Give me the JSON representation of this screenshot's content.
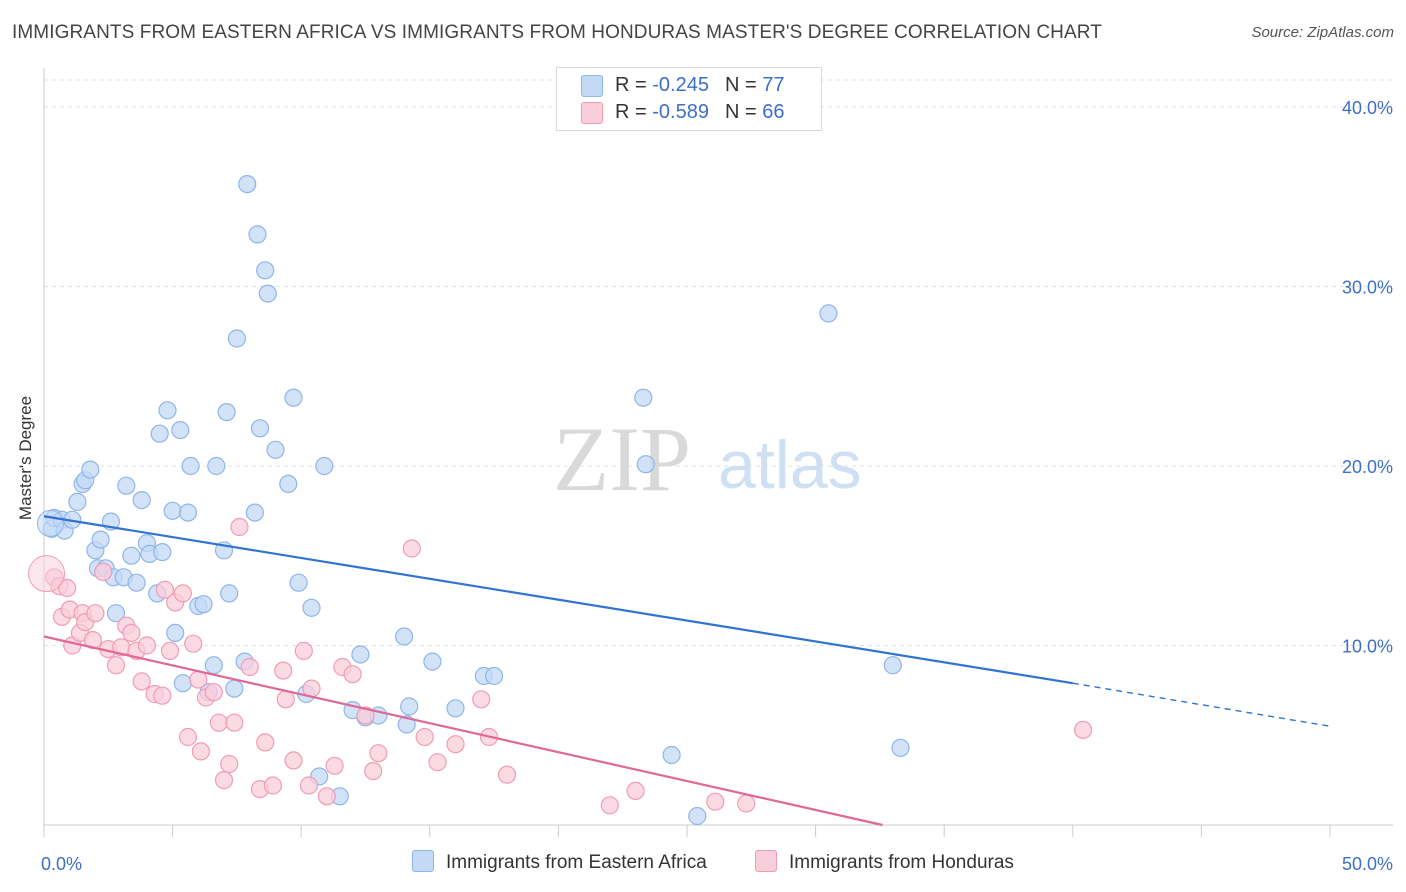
{
  "title": "IMMIGRANTS FROM EASTERN AFRICA VS IMMIGRANTS FROM HONDURAS MASTER'S DEGREE CORRELATION CHART",
  "source": "Source: ZipAtlas.com",
  "watermark": {
    "zip": "ZIP",
    "atlas": "atlas"
  },
  "legend": {
    "rows": [
      {
        "r_label": "R = ",
        "r_value": "-0.245",
        "n_label": "N = ",
        "n_value": "77",
        "color": "#b9d3f4"
      },
      {
        "r_label": "R = ",
        "r_value": "-0.589",
        "n_label": "N = ",
        "n_value": "66",
        "color": "#f9c6d4"
      }
    ]
  },
  "chart_data": {
    "type": "scatter",
    "ylabel": "Master's Degree",
    "xlabel": "",
    "xlim": [
      0,
      50
    ],
    "ylim": [
      0,
      41.5
    ],
    "x_tick_labels": [
      "0.0%",
      "50.0%"
    ],
    "y_ticks": [
      10,
      20,
      30,
      40
    ],
    "y_tick_labels": [
      "10.0%",
      "20.0%",
      "30.0%",
      "40.0%"
    ],
    "grid": true,
    "series": [
      {
        "name": "Immigrants from Eastern Africa",
        "color": "#8fb5ea",
        "fill": "#c3d9f5",
        "line_color": "#3073d1",
        "trend": {
          "x0": 0,
          "y0": 17.2,
          "x1": 40,
          "y1": 7.9,
          "dash_to_x": 50,
          "dash_to_y": 5.5
        },
        "points": [
          [
            0.3,
            16.5
          ],
          [
            0.4,
            17.1
          ],
          [
            0.7,
            17.0
          ],
          [
            0.8,
            16.4
          ],
          [
            1.1,
            17.0
          ],
          [
            1.3,
            18.0
          ],
          [
            1.5,
            19.0
          ],
          [
            1.6,
            19.2
          ],
          [
            1.8,
            19.8
          ],
          [
            2.0,
            15.3
          ],
          [
            2.1,
            14.3
          ],
          [
            2.2,
            15.9
          ],
          [
            2.4,
            14.3
          ],
          [
            2.6,
            16.9
          ],
          [
            2.7,
            13.8
          ],
          [
            2.8,
            11.8
          ],
          [
            3.1,
            13.8
          ],
          [
            3.2,
            18.9
          ],
          [
            3.4,
            15.0
          ],
          [
            3.6,
            13.5
          ],
          [
            3.8,
            18.1
          ],
          [
            4.0,
            15.7
          ],
          [
            4.1,
            15.1
          ],
          [
            4.4,
            12.9
          ],
          [
            4.5,
            21.8
          ],
          [
            4.6,
            15.2
          ],
          [
            4.8,
            23.1
          ],
          [
            5.0,
            17.5
          ],
          [
            5.1,
            10.7
          ],
          [
            5.3,
            22.0
          ],
          [
            5.4,
            7.9
          ],
          [
            5.6,
            17.4
          ],
          [
            5.7,
            20.0
          ],
          [
            6.0,
            12.2
          ],
          [
            6.2,
            12.3
          ],
          [
            6.4,
            7.4
          ],
          [
            6.6,
            8.9
          ],
          [
            6.7,
            20.0
          ],
          [
            7.0,
            15.3
          ],
          [
            7.1,
            23.0
          ],
          [
            7.2,
            12.9
          ],
          [
            7.4,
            7.6
          ],
          [
            7.5,
            27.1
          ],
          [
            7.8,
            9.1
          ],
          [
            7.9,
            35.7
          ],
          [
            8.2,
            17.4
          ],
          [
            8.3,
            32.9
          ],
          [
            8.4,
            22.1
          ],
          [
            8.6,
            30.9
          ],
          [
            8.7,
            29.6
          ],
          [
            9.0,
            20.9
          ],
          [
            9.5,
            19.0
          ],
          [
            9.7,
            23.8
          ],
          [
            9.9,
            13.5
          ],
          [
            10.2,
            7.3
          ],
          [
            10.4,
            12.1
          ],
          [
            10.7,
            2.7
          ],
          [
            10.9,
            20.0
          ],
          [
            11.5,
            1.6
          ],
          [
            12.0,
            6.4
          ],
          [
            12.3,
            9.5
          ],
          [
            12.5,
            6.0
          ],
          [
            13.0,
            6.1
          ],
          [
            14.0,
            10.5
          ],
          [
            14.1,
            5.6
          ],
          [
            14.2,
            6.6
          ],
          [
            15.1,
            9.1
          ],
          [
            16.0,
            6.5
          ],
          [
            17.1,
            8.3
          ],
          [
            17.5,
            8.3
          ],
          [
            23.3,
            23.8
          ],
          [
            23.4,
            20.1
          ],
          [
            24.4,
            3.9
          ],
          [
            25.4,
            0.5
          ],
          [
            30.5,
            28.5
          ],
          [
            33.3,
            4.3
          ],
          [
            33.0,
            8.9
          ]
        ]
      },
      {
        "name": "Immigrants from Honduras",
        "color": "#f29bb5",
        "fill": "#f9cedb",
        "line_color": "#e06896",
        "trend": {
          "x0": 0,
          "y0": 10.5,
          "x1": 32.6,
          "y1": 0
        },
        "points": [
          [
            0.4,
            13.8
          ],
          [
            0.6,
            13.3
          ],
          [
            0.7,
            11.6
          ],
          [
            0.9,
            13.2
          ],
          [
            1.0,
            12.0
          ],
          [
            1.1,
            10.0
          ],
          [
            1.4,
            10.7
          ],
          [
            1.5,
            11.8
          ],
          [
            1.6,
            11.3
          ],
          [
            1.9,
            10.3
          ],
          [
            2.0,
            11.8
          ],
          [
            2.3,
            14.1
          ],
          [
            2.5,
            9.8
          ],
          [
            2.8,
            8.9
          ],
          [
            3.0,
            9.9
          ],
          [
            3.2,
            11.1
          ],
          [
            3.4,
            10.7
          ],
          [
            3.6,
            9.7
          ],
          [
            3.8,
            8.0
          ],
          [
            4.0,
            10.0
          ],
          [
            4.3,
            7.3
          ],
          [
            4.6,
            7.2
          ],
          [
            4.7,
            13.1
          ],
          [
            4.9,
            9.7
          ],
          [
            5.1,
            12.4
          ],
          [
            5.4,
            12.9
          ],
          [
            5.6,
            4.9
          ],
          [
            5.8,
            10.1
          ],
          [
            6.0,
            8.1
          ],
          [
            6.1,
            4.1
          ],
          [
            6.3,
            7.1
          ],
          [
            6.6,
            7.4
          ],
          [
            6.8,
            5.7
          ],
          [
            7.0,
            2.5
          ],
          [
            7.2,
            3.4
          ],
          [
            7.4,
            5.7
          ],
          [
            7.6,
            16.6
          ],
          [
            8.0,
            8.8
          ],
          [
            8.4,
            2.0
          ],
          [
            8.6,
            4.6
          ],
          [
            8.9,
            2.2
          ],
          [
            9.3,
            8.6
          ],
          [
            9.4,
            7.0
          ],
          [
            9.7,
            3.6
          ],
          [
            10.1,
            9.7
          ],
          [
            10.3,
            2.2
          ],
          [
            10.4,
            7.6
          ],
          [
            11.0,
            1.6
          ],
          [
            11.3,
            3.3
          ],
          [
            11.6,
            8.8
          ],
          [
            12.0,
            8.4
          ],
          [
            12.5,
            6.1
          ],
          [
            12.8,
            3.0
          ],
          [
            13.0,
            4.0
          ],
          [
            14.3,
            15.4
          ],
          [
            14.8,
            4.9
          ],
          [
            15.3,
            3.5
          ],
          [
            16.0,
            4.5
          ],
          [
            17.0,
            7.0
          ],
          [
            17.3,
            4.9
          ],
          [
            18.0,
            2.8
          ],
          [
            22.0,
            1.1
          ],
          [
            23.0,
            1.9
          ],
          [
            26.1,
            1.3
          ],
          [
            27.3,
            1.2
          ],
          [
            40.4,
            5.3
          ]
        ]
      }
    ]
  },
  "bottom_legend": {
    "items": [
      "Immigrants from Eastern Africa",
      "Immigrants from Honduras"
    ]
  }
}
